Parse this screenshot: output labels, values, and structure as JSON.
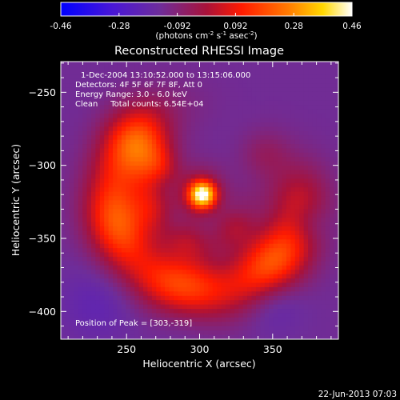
{
  "chart_data": {
    "type": "heatmap",
    "title": "Reconstructed RHESSI Image",
    "xlabel": "Heliocentric X (arcsec)",
    "ylabel": "Heliocentric Y (arcsec)",
    "xlim": [
      205,
      395
    ],
    "ylim": [
      -419,
      -229
    ],
    "xticks": [
      250,
      300,
      350
    ],
    "yticks": [
      -250,
      -300,
      -350,
      -400
    ],
    "colorbar": {
      "range": [
        -0.46,
        0.46
      ],
      "ticks": [
        "-0.46",
        "-0.28",
        "-0.092",
        "0.092",
        "0.28",
        "0.46"
      ],
      "unit_parts": [
        "(photons cm",
        "-2",
        " s",
        "-1",
        " asec",
        "-2",
        ")"
      ]
    },
    "info_lines": [
      "1-Dec-2004 13:10:52.000 to 13:15:06.000",
      "Detectors: 4F 5F 6F 7F 8F, Att 0",
      "Energy Range: 3.0 - 6.0 keV",
      "Clean     Total counts: 6.54E+04"
    ],
    "peak_label": "Position of Peak = [303,-319]",
    "peak": {
      "x": 303,
      "y": -319,
      "value": 0.46
    },
    "source_components": [
      {
        "kind": "gaussian",
        "x": 302,
        "y": -320,
        "sigma": 6,
        "amplitude": 0.5
      },
      {
        "kind": "gaussian",
        "x": 300,
        "y": -320,
        "sigma": 13,
        "amplitude": 0.16
      },
      {
        "kind": "ring",
        "cx": 305,
        "cy": -322,
        "radius": 63,
        "width": 15,
        "amplitude": 0.3,
        "arc_from_deg": 150,
        "arc_to_deg": 335
      },
      {
        "kind": "ring",
        "cx": 300,
        "cy": -320,
        "radius": 33,
        "width": 9,
        "amplitude": 0.1,
        "arc_from_deg": 160,
        "arc_to_deg": 320
      },
      {
        "kind": "gaussian",
        "x": 262,
        "y": -298,
        "sigma": 14,
        "amplitude": 0.12
      },
      {
        "kind": "gaussian",
        "x": 345,
        "y": -293,
        "sigma": 12,
        "amplitude": 0.08
      },
      {
        "kind": "gaussian",
        "x": 375,
        "y": -340,
        "sigma": 10,
        "amplitude": -0.07
      },
      {
        "kind": "gaussian",
        "x": 350,
        "y": -392,
        "sigma": 14,
        "amplitude": -0.08
      },
      {
        "kind": "gaussian",
        "x": 290,
        "y": -395,
        "sigma": 16,
        "amplitude": -0.05
      },
      {
        "kind": "gaussian",
        "x": 230,
        "y": -395,
        "sigma": 18,
        "amplitude": -0.06
      }
    ],
    "background_level": -0.14,
    "grid": false,
    "colormap": "rainbow-hot (blue-purple-red-yellow-white)"
  },
  "footer": {
    "timestamp": "22-Jun-2013 07:03"
  },
  "colors": {
    "background": "#000000",
    "text": "#ffffff",
    "axes": "#ffffff"
  }
}
